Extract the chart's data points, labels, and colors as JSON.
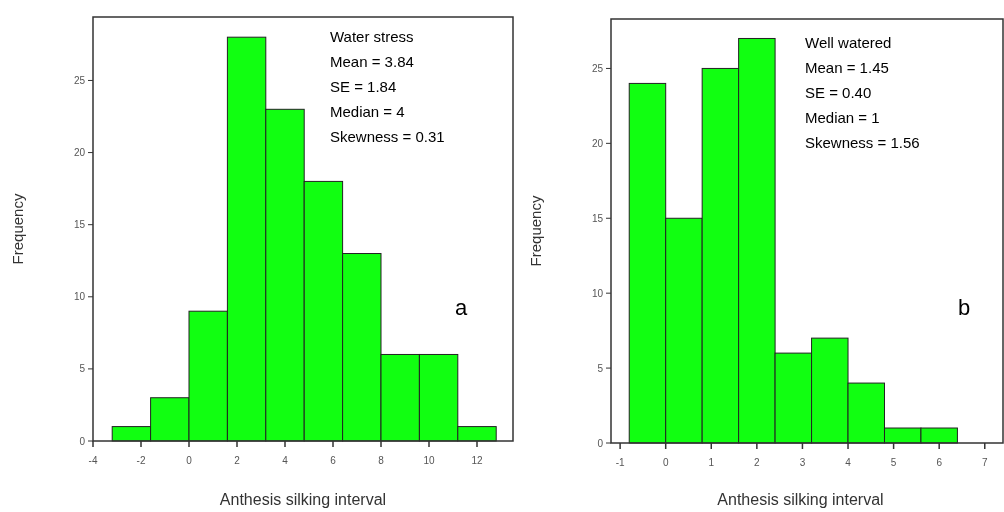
{
  "chart_data": [
    {
      "type": "histogram",
      "bins": [
        -3.2,
        -1.6,
        0,
        1.6,
        3.2,
        4.8,
        6.4,
        8,
        9.6,
        11.2,
        12.8
      ],
      "values": [
        1,
        3,
        9,
        28,
        23,
        18,
        13,
        6,
        6,
        1
      ],
      "color": "#11ff11",
      "xlim": [
        -4,
        13.5
      ],
      "xticks": [
        -4,
        -2,
        0,
        2,
        4,
        6,
        8,
        10,
        12
      ],
      "ylim": [
        0,
        29.4
      ],
      "yticks": [
        0,
        5,
        10,
        15,
        20,
        25
      ],
      "xlabel": "Anthesis silking interval",
      "ylabel": "Frequency",
      "grid": false,
      "annotations": [
        "Water stress",
        "Mean = 3.84",
        "SE = 1.84",
        "Median = 4",
        "Skewness  = 0.31",
        "a"
      ]
    },
    {
      "type": "histogram",
      "bins": [
        -0.8,
        0,
        0.8,
        1.6,
        2.4,
        3.2,
        4,
        4.8,
        5.6,
        6.4
      ],
      "values": [
        24,
        15,
        25,
        27,
        6,
        7,
        4,
        1,
        1
      ],
      "color": "#11ff11",
      "xlim": [
        -1.2,
        7.4
      ],
      "xticks": [
        -1,
        0,
        1,
        2,
        3,
        4,
        5,
        6,
        7
      ],
      "ylim": [
        0,
        28.3
      ],
      "yticks": [
        0,
        5,
        10,
        15,
        20,
        25
      ],
      "xlabel": "Anthesis silking interval",
      "ylabel": "Frequency",
      "grid": false,
      "annotations": [
        "Well watered",
        "Mean = 1.45",
        "SE = 0.40",
        "Median = 1",
        "Skewness = 1.56",
        "b"
      ]
    }
  ]
}
